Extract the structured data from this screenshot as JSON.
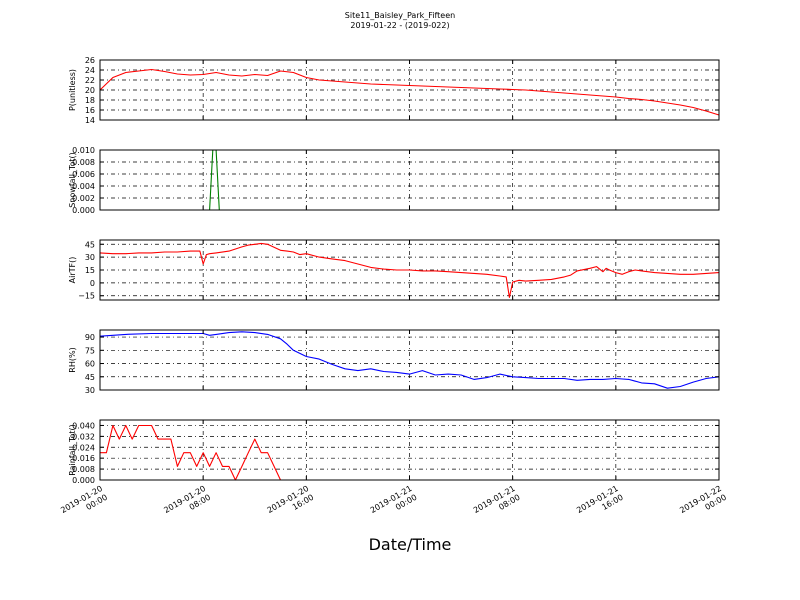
{
  "title": "Site11_Baisley_Park_Fifteen",
  "subtitle": "2019-01-22 - (2019-022)",
  "xlabel": "Date/Time",
  "x_ticks": [
    {
      "line1": "2019-01-20",
      "line2": "00:00"
    },
    {
      "line1": "2019-01-20",
      "line2": "08:00"
    },
    {
      "line1": "2019-01-20",
      "line2": "16:00"
    },
    {
      "line1": "2019-01-21",
      "line2": "00:00"
    },
    {
      "line1": "2019-01-21",
      "line2": "08:00"
    },
    {
      "line1": "2019-01-21",
      "line2": "16:00"
    },
    {
      "line1": "2019-01-22",
      "line2": "00:00"
    }
  ],
  "chart_data": [
    {
      "type": "line",
      "ylabel": "P(unitless)",
      "ylim": [
        14,
        26
      ],
      "yticks": [
        "14",
        "16",
        "18",
        "20",
        "22",
        "24",
        "26"
      ],
      "color": "#ff0000",
      "grid": true,
      "x_hours": [
        0,
        1,
        2,
        3,
        4,
        5,
        6,
        7,
        8,
        9,
        10,
        11,
        12,
        13,
        14,
        15,
        16,
        17,
        18,
        19,
        20,
        21,
        22,
        23,
        24,
        25,
        26,
        27,
        28,
        29,
        30,
        31,
        32,
        33,
        34,
        35,
        36,
        37,
        38,
        39,
        40,
        41,
        42,
        43,
        44,
        45,
        46,
        47,
        48
      ],
      "values": [
        20,
        22.5,
        23.5,
        23.8,
        24.1,
        23.7,
        23.2,
        23,
        23.1,
        23.5,
        23,
        22.8,
        23.1,
        22.9,
        23.8,
        23.5,
        22.5,
        22,
        21.8,
        21.6,
        21.4,
        21.2,
        21.1,
        21,
        20.9,
        20.8,
        20.7,
        20.6,
        20.5,
        20.4,
        20.3,
        20.2,
        20.1,
        20,
        19.8,
        19.6,
        19.4,
        19.2,
        19,
        18.8,
        18.6,
        18.3,
        18.1,
        17.8,
        17.4,
        17,
        16.5,
        15.8,
        15
      ]
    },
    {
      "type": "line",
      "ylabel": "Snowfall_Tot()",
      "ylim": [
        0,
        0.01
      ],
      "yticks": [
        "0.000",
        "0.002",
        "0.004",
        "0.006",
        "0.008",
        "0.010"
      ],
      "color": "#008000",
      "grid": true,
      "x_hours": [
        0,
        8,
        8.5,
        8.75,
        9.0,
        9.25,
        10,
        48
      ],
      "values": [
        0,
        0,
        0,
        0.01,
        0.01,
        0,
        0,
        0
      ]
    },
    {
      "type": "line",
      "ylabel": "AirTF()",
      "ylim": [
        -20,
        50
      ],
      "yticks": [
        "−15",
        "0",
        "15",
        "30",
        "45"
      ],
      "color": "#ff0000",
      "grid": true,
      "x_hours": [
        0,
        1,
        2,
        3,
        4,
        5,
        6,
        7,
        7.75,
        8,
        8.25,
        8.5,
        9,
        10,
        11,
        11.5,
        12,
        12.5,
        13,
        14,
        14.5,
        15,
        15.5,
        16,
        17,
        18,
        19,
        20,
        21,
        22,
        23,
        24,
        25,
        26,
        27,
        28,
        29,
        30,
        31,
        31.5,
        31.75,
        32,
        32.5,
        33,
        34,
        35,
        36,
        36.5,
        37,
        38,
        38.5,
        39,
        39.25,
        39.5,
        40,
        40.5,
        41,
        41.5,
        42,
        43,
        44,
        45,
        46,
        47,
        48
      ],
      "values": [
        35,
        34,
        34,
        35,
        35,
        36,
        36,
        37,
        37,
        22,
        33,
        34,
        35,
        37,
        42,
        44,
        45,
        46,
        45,
        38,
        37,
        36,
        33,
        34,
        30,
        28,
        26,
        22,
        18,
        16,
        15,
        15,
        14,
        14,
        13,
        12,
        11,
        10,
        8,
        7,
        -17,
        1,
        3,
        2,
        3,
        4,
        7,
        9,
        14,
        17,
        19,
        13,
        17,
        15,
        12,
        10,
        13,
        15,
        14,
        12,
        11,
        10,
        10,
        11,
        12
      ]
    },
    {
      "type": "line",
      "ylabel": "RH(%)",
      "ylim": [
        30,
        98
      ],
      "yticks": [
        "30",
        "45",
        "60",
        "75",
        "90"
      ],
      "color": "#0000ff",
      "grid": true,
      "x_hours": [
        0,
        2,
        4,
        6,
        8,
        8.5,
        9,
        10,
        11,
        12,
        13,
        14,
        14.5,
        15,
        16,
        17,
        18,
        19,
        20,
        21,
        22,
        23,
        24,
        25,
        26,
        27,
        28,
        29,
        30,
        31,
        32,
        33,
        34,
        35,
        36,
        37,
        38,
        39,
        40,
        41,
        42,
        43,
        44,
        45,
        46,
        47,
        48
      ],
      "values": [
        91,
        93,
        94,
        94,
        94,
        92,
        93,
        95,
        96,
        95,
        93,
        88,
        82,
        75,
        68,
        65,
        59,
        54,
        52,
        54,
        51,
        50,
        48,
        52,
        47,
        48,
        47,
        42,
        44,
        48,
        45,
        44,
        43,
        43,
        43,
        41,
        42,
        42,
        43,
        42,
        38,
        37,
        32,
        34,
        39,
        43,
        45
      ]
    },
    {
      "type": "line",
      "ylabel": "Rainfall_Tot()",
      "ylim": [
        0,
        0.044
      ],
      "yticks": [
        "0.000",
        "0.008",
        "0.016",
        "0.024",
        "0.032",
        "0.040"
      ],
      "color": "#ff0000",
      "grid": true,
      "x_hours": [
        0,
        0.5,
        1,
        1.5,
        2,
        2.5,
        3,
        3.5,
        4,
        4.5,
        5,
        5.5,
        6,
        6.5,
        7,
        7.5,
        8,
        8.5,
        9,
        9.5,
        10,
        10.5,
        11,
        11.5,
        12,
        12.5,
        13,
        13.5,
        14,
        14.5,
        15,
        48
      ],
      "values": [
        0.02,
        0.02,
        0.04,
        0.03,
        0.04,
        0.03,
        0.04,
        0.04,
        0.04,
        0.03,
        0.03,
        0.03,
        0.01,
        0.02,
        0.02,
        0.01,
        0.02,
        0.01,
        0.02,
        0.01,
        0.01,
        0,
        0.01,
        0.02,
        0.03,
        0.02,
        0.02,
        0.01,
        0,
        0,
        0,
        0
      ]
    }
  ]
}
